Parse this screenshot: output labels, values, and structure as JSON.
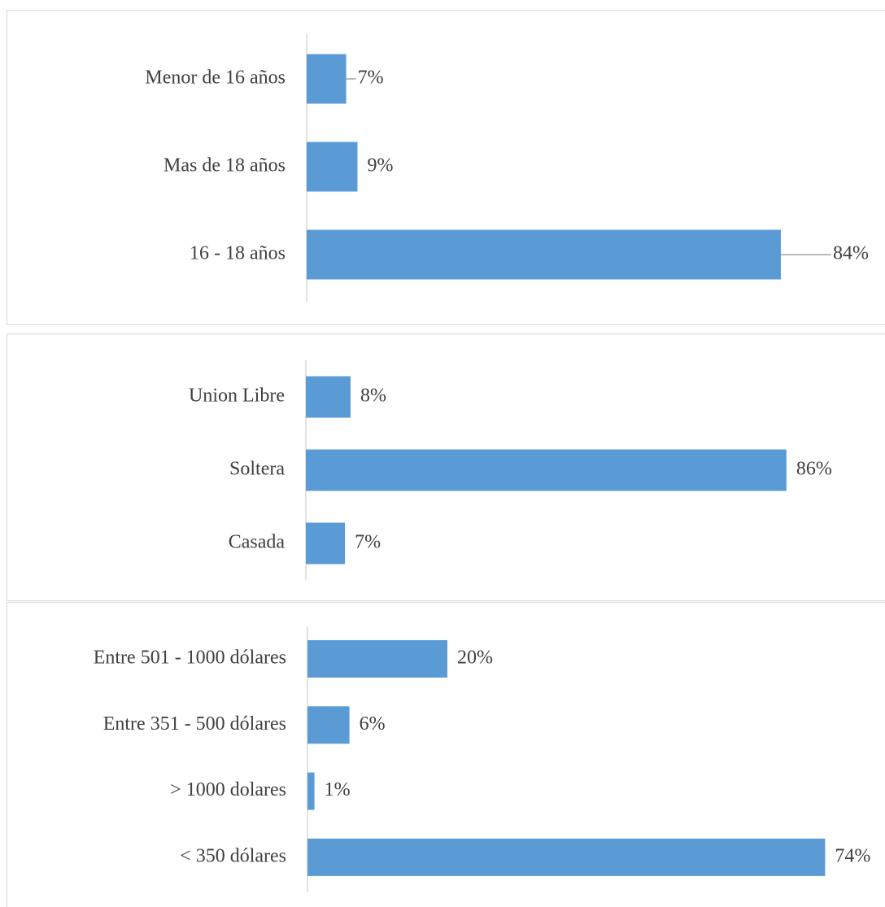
{
  "chart_data": [
    {
      "type": "bar",
      "orientation": "horizontal",
      "color": "#5b9bd5",
      "categories": [
        "Menor de 16 años",
        "Mas de 18 años",
        "16 - 18 años"
      ],
      "values": [
        7,
        9,
        84
      ],
      "value_labels": [
        "7%",
        "9%",
        "84%"
      ]
    },
    {
      "type": "bar",
      "orientation": "horizontal",
      "color": "#5b9bd5",
      "categories": [
        "Union Libre",
        "Soltera",
        "Casada"
      ],
      "values": [
        8,
        86,
        7
      ],
      "value_labels": [
        "8%",
        "86%",
        "7%"
      ]
    },
    {
      "type": "bar",
      "orientation": "horizontal",
      "color": "#5b9bd5",
      "categories": [
        "Entre 501 - 1000 dólares",
        "Entre 351 - 500 dólares",
        "> 1000 dolares",
        "< 350 dólares"
      ],
      "values": [
        20,
        6,
        1,
        74
      ],
      "value_labels": [
        "20%",
        "6%",
        "1%",
        "74%"
      ]
    }
  ]
}
